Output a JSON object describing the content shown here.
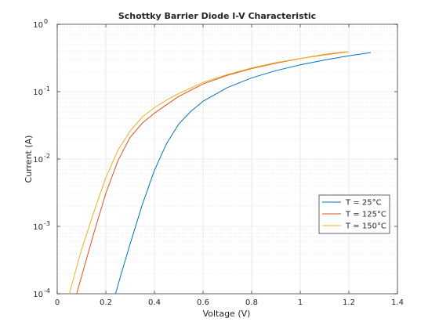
{
  "chart_data": {
    "type": "line",
    "title": "Schottky Barrier Diode I-V Characteristic",
    "xlabel": "Voltage (V)",
    "ylabel": "Current (A)",
    "xlim": [
      0,
      1.4
    ],
    "ylim": [
      0.0001,
      1
    ],
    "yscale": "log",
    "grid": true,
    "minor_grid": true,
    "legend_position": "right",
    "x_ticks": [
      0,
      0.2,
      0.4,
      0.6,
      0.8,
      1,
      1.2,
      1.4
    ],
    "x_tick_labels": [
      "0",
      "0.2",
      "0.4",
      "0.6",
      "0.8",
      "1",
      "1.2",
      "1.4"
    ],
    "y_ticks": [
      0.0001,
      0.001,
      0.01,
      0.1,
      1
    ],
    "y_tick_labels": [
      {
        "base": "10",
        "exp": "-4"
      },
      {
        "base": "10",
        "exp": "-3"
      },
      {
        "base": "10",
        "exp": "-2"
      },
      {
        "base": "10",
        "exp": "-1"
      },
      {
        "base": "10",
        "exp": "0"
      }
    ],
    "series": [
      {
        "name": "T = 25°C",
        "color": "#0072BD",
        "x": [
          0.24,
          0.26,
          0.3,
          0.35,
          0.4,
          0.45,
          0.5,
          0.55,
          0.6,
          0.7,
          0.8,
          0.9,
          1.0,
          1.1,
          1.2,
          1.29
        ],
        "y": [
          0.0001,
          0.00018,
          0.00055,
          0.0021,
          0.0068,
          0.017,
          0.033,
          0.051,
          0.072,
          0.115,
          0.16,
          0.205,
          0.25,
          0.295,
          0.34,
          0.38
        ]
      },
      {
        "name": "T = 125°C",
        "color": "#D95319",
        "x": [
          0.08,
          0.1,
          0.15,
          0.2,
          0.25,
          0.3,
          0.35,
          0.4,
          0.45,
          0.5,
          0.6,
          0.7,
          0.8,
          0.9,
          1.0,
          1.1,
          1.19
        ],
        "y": [
          0.0001,
          0.00018,
          0.00078,
          0.0031,
          0.0095,
          0.021,
          0.034,
          0.048,
          0.064,
          0.085,
          0.13,
          0.175,
          0.22,
          0.265,
          0.31,
          0.355,
          0.39
        ]
      },
      {
        "name": "T = 150°C",
        "color": "#EDB120",
        "x": [
          0.05,
          0.08,
          0.1,
          0.15,
          0.2,
          0.25,
          0.3,
          0.35,
          0.4,
          0.45,
          0.5,
          0.6,
          0.7,
          0.8,
          0.9,
          1.0,
          1.1,
          1.2
        ],
        "y": [
          0.0001,
          0.00025,
          0.00045,
          0.0016,
          0.0053,
          0.0135,
          0.026,
          0.042,
          0.058,
          0.075,
          0.094,
          0.137,
          0.18,
          0.225,
          0.27,
          0.31,
          0.35,
          0.39
        ]
      }
    ]
  }
}
